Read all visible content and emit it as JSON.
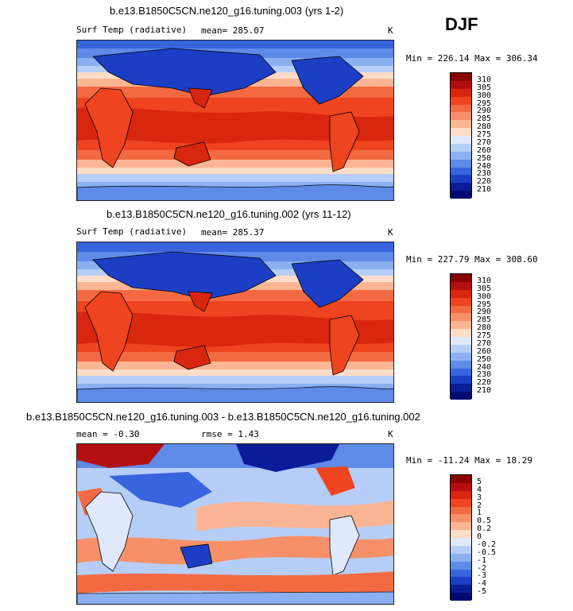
{
  "season": "DJF",
  "panels": [
    {
      "title": "b.e13.B1850C5CN.ne120_g16.tuning.003 (yrs 1-2)",
      "left_label": "Surf Temp (radiative)",
      "mid_label": "mean=  285.07",
      "units": "K",
      "minmax": "Min = 226.14 Max = 306.34",
      "levels": [
        "310",
        "305",
        "300",
        "295",
        "290",
        "285",
        "280",
        "275",
        "270",
        "260",
        "250",
        "240",
        "230",
        "220",
        "210"
      ],
      "colors": [
        "#8b0000",
        "#b40f0f",
        "#d8260f",
        "#ee4420",
        "#f36a42",
        "#f79068",
        "#fbb595",
        "#fddcc8",
        "#dfe9fb",
        "#b6cef7",
        "#8bb0f2",
        "#5e8ae8",
        "#3864dd",
        "#1b3ec5",
        "#0b1c99",
        "#000a70"
      ]
    },
    {
      "title": "b.e13.B1850C5CN.ne120_g16.tuning.002 (yrs 11-12)",
      "left_label": "Surf Temp (radiative)",
      "mid_label": "mean=  285.37",
      "units": "K",
      "minmax": "Min = 227.79 Max = 308.60",
      "levels": [
        "310",
        "305",
        "300",
        "295",
        "290",
        "285",
        "280",
        "275",
        "270",
        "260",
        "250",
        "240",
        "230",
        "220",
        "210"
      ],
      "colors": [
        "#8b0000",
        "#b40f0f",
        "#d8260f",
        "#ee4420",
        "#f36a42",
        "#f79068",
        "#fbb595",
        "#fddcc8",
        "#dfe9fb",
        "#b6cef7",
        "#8bb0f2",
        "#5e8ae8",
        "#3864dd",
        "#1b3ec5",
        "#0b1c99",
        "#000a70"
      ]
    },
    {
      "title": "b.e13.B1850C5CN.ne120_g16.tuning.003 - b.e13.B1850C5CN.ne120_g16.tuning.002",
      "left_label": "mean =   -0.30",
      "mid_label": "rmse =    1.43",
      "units": "K",
      "minmax": "Min = -11.24 Max =  18.29",
      "levels": [
        "5",
        "4",
        "3",
        "2",
        "1",
        "0.5",
        "0.2",
        "0",
        "-0.2",
        "-0.5",
        "-1",
        "-2",
        "-3",
        "-4",
        "-5"
      ],
      "colors": [
        "#8b0000",
        "#b40f0f",
        "#d8260f",
        "#ee4420",
        "#f36a42",
        "#f79068",
        "#fbb595",
        "#fddcc8",
        "#dfe9fb",
        "#b6cef7",
        "#8bb0f2",
        "#5e8ae8",
        "#3864dd",
        "#1b3ec5",
        "#0b1c99",
        "#000a70"
      ]
    }
  ],
  "chart_data": [
    {
      "type": "heatmap",
      "title": "b.e13.B1850C5CN.ne120_g16.tuning.003 (yrs 1-2)",
      "variable": "Surf Temp (radiative)",
      "units": "K",
      "mean": 285.07,
      "min": 226.14,
      "max": 306.34,
      "contour_levels": [
        210,
        220,
        230,
        240,
        250,
        260,
        270,
        275,
        280,
        285,
        290,
        295,
        300,
        305,
        310
      ]
    },
    {
      "type": "heatmap",
      "title": "b.e13.B1850C5CN.ne120_g16.tuning.002 (yrs 11-12)",
      "variable": "Surf Temp (radiative)",
      "units": "K",
      "mean": 285.37,
      "min": 227.79,
      "max": 308.6,
      "contour_levels": [
        210,
        220,
        230,
        240,
        250,
        260,
        270,
        275,
        280,
        285,
        290,
        295,
        300,
        305,
        310
      ]
    },
    {
      "type": "heatmap",
      "title": "b.e13.B1850C5CN.ne120_g16.tuning.003 - b.e13.B1850C5CN.ne120_g16.tuning.002",
      "units": "K",
      "mean": -0.3,
      "rmse": 1.43,
      "min": -11.24,
      "max": 18.29,
      "contour_levels": [
        -5,
        -4,
        -3,
        -2,
        -1,
        -0.5,
        -0.2,
        0,
        0.2,
        0.5,
        1,
        2,
        3,
        4,
        5
      ]
    }
  ]
}
